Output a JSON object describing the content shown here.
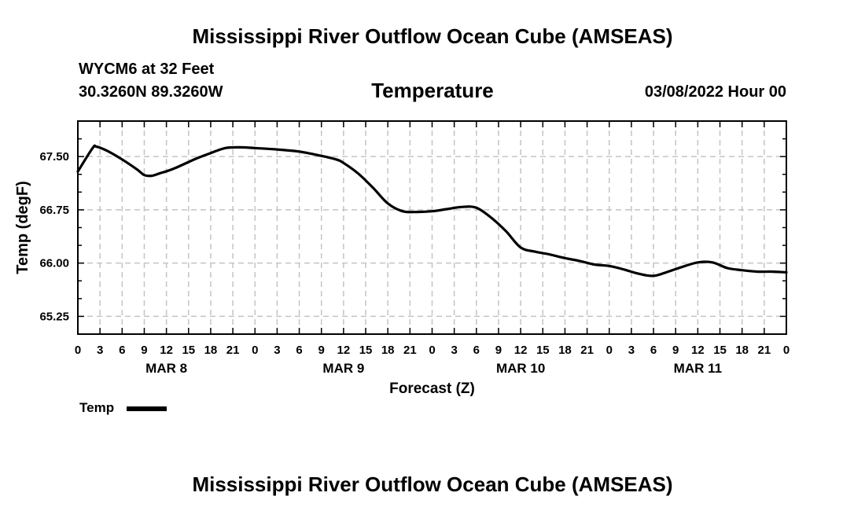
{
  "header": {
    "title": "Mississippi River Outflow Ocean Cube (AMSEAS)",
    "station": "WYCM6 at 32 Feet",
    "coords": "30.3260N  89.3260W",
    "variable": "Temperature",
    "run_time": "03/08/2022 Hour 00"
  },
  "footer": {
    "title": "Mississippi River Outflow Ocean Cube (AMSEAS)"
  },
  "chart_data": {
    "type": "line",
    "title": "Temperature",
    "xlabel": "Forecast (Z)",
    "ylabel": "Temp (degF)",
    "ylim": [
      65.0,
      68.0
    ],
    "xlim": [
      0,
      96
    ],
    "grid": true,
    "yticks": [
      65.25,
      66.0,
      66.75,
      67.5
    ],
    "ytick_labels": [
      "65.25",
      "66.00",
      "66.75",
      "67.50"
    ],
    "xticks": [
      0,
      3,
      6,
      9,
      12,
      15,
      18,
      21,
      24,
      27,
      30,
      33,
      36,
      39,
      42,
      45,
      48,
      51,
      54,
      57,
      60,
      63,
      66,
      69,
      72,
      75,
      78,
      81,
      84,
      87,
      90,
      93,
      96
    ],
    "xtick_labels": [
      "0",
      "3",
      "6",
      "9",
      "12",
      "15",
      "18",
      "21",
      "0",
      "3",
      "6",
      "9",
      "12",
      "15",
      "18",
      "21",
      "0",
      "3",
      "6",
      "9",
      "12",
      "15",
      "18",
      "21",
      "0",
      "3",
      "6",
      "9",
      "12",
      "15",
      "18",
      "21",
      "0"
    ],
    "day_labels": [
      {
        "label": "MAR 8",
        "hour": 12
      },
      {
        "label": "MAR 9",
        "hour": 36
      },
      {
        "label": "MAR 10",
        "hour": 60
      },
      {
        "label": "MAR 11",
        "hour": 84
      }
    ],
    "legend": [
      {
        "name": "Temp",
        "position": "bottom-left"
      }
    ],
    "series": [
      {
        "name": "Temp",
        "x": [
          0,
          2,
          2.5,
          4,
          6,
          8,
          9,
          10,
          11,
          13,
          16,
          18,
          20,
          22,
          24,
          27,
          30,
          33,
          35,
          36,
          38,
          40,
          42,
          44,
          46,
          48,
          50,
          52,
          54,
          56,
          58,
          60,
          62,
          64,
          66,
          68,
          70,
          72,
          74,
          76,
          78,
          80,
          82,
          84,
          86,
          88,
          90,
          92,
          94,
          96
        ],
        "y": [
          67.29,
          67.62,
          67.64,
          67.58,
          67.46,
          67.32,
          67.24,
          67.23,
          67.26,
          67.33,
          67.47,
          67.55,
          67.62,
          67.63,
          67.62,
          67.6,
          67.57,
          67.51,
          67.46,
          67.41,
          67.26,
          67.06,
          66.84,
          66.73,
          66.72,
          66.73,
          66.76,
          66.79,
          66.78,
          66.64,
          66.45,
          66.22,
          66.16,
          66.12,
          66.07,
          66.03,
          65.98,
          65.96,
          65.91,
          65.85,
          65.82,
          65.88,
          65.95,
          66.01,
          66.01,
          65.93,
          65.9,
          65.88,
          65.88,
          65.87
        ]
      }
    ]
  }
}
